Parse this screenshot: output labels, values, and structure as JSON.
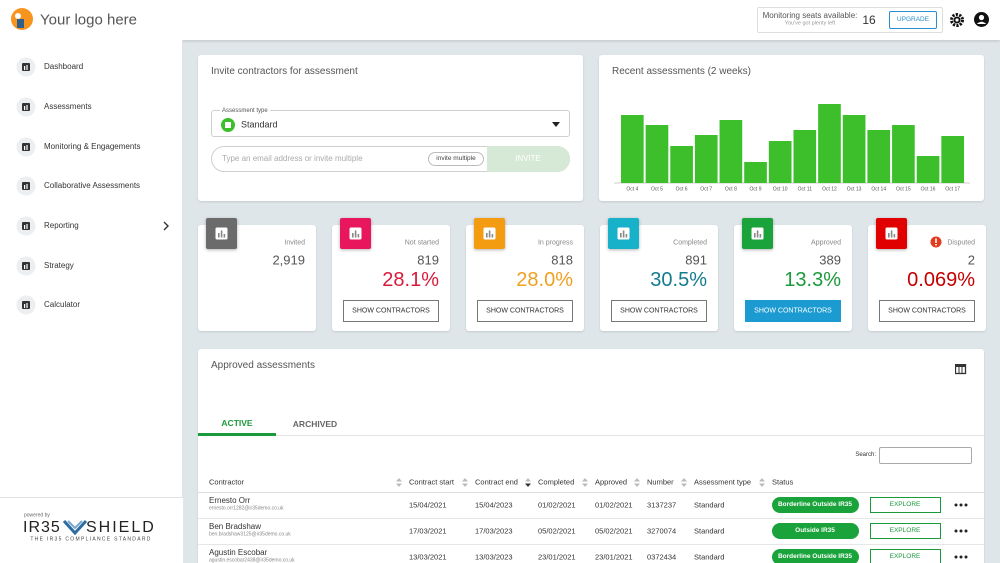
{
  "header": {
    "logo": "Your logo here",
    "seats_label": "Monitoring seats available:",
    "seats_note": "You've got plenty left",
    "seats_count": "16",
    "upgrade": "UPGRADE"
  },
  "sidebar": {
    "items": [
      "Dashboard",
      "Assessments",
      "Monitoring & Engagements",
      "Collaborative Assessments",
      "Reporting",
      "Strategy",
      "Calculator"
    ],
    "powered_by": "powered by",
    "brand": "IR35",
    "brand2": "SHIELD",
    "tagline": "THE IR35 COMPLIANCE STANDARD"
  },
  "invite": {
    "title": "Invite contractors for assessment",
    "type_label": "Assessment type",
    "type_value": "Standard",
    "email_placeholder": "Type an email address or invite multiple",
    "invite_multiple": "invite multiple",
    "invite_button": "INVITE"
  },
  "chart_data": {
    "type": "bar",
    "title": "Recent assessments (2 weeks)",
    "categories": [
      "Oct 4",
      "Oct 5",
      "Oct 6",
      "Oct 7",
      "Oct 8",
      "Oct 9",
      "Oct 10",
      "Oct 11",
      "Oct 12",
      "Oct 13",
      "Oct 14",
      "Oct 15",
      "Oct 16",
      "Oct 17"
    ],
    "values": [
      68,
      58,
      37,
      48,
      63,
      21,
      42,
      53,
      79,
      68,
      53,
      58,
      27,
      47
    ],
    "color": "#3dbf2b",
    "ylim": [
      0,
      80
    ]
  },
  "stats": [
    {
      "label": "Invited",
      "count": "2,919",
      "color": "#6b6b6b"
    },
    {
      "label": "Not started",
      "count": "819",
      "percent": "28.1%",
      "button": "SHOW CONTRACTORS",
      "color": "#e8175d",
      "percent_color": "#d81b3c"
    },
    {
      "label": "In progress",
      "count": "818",
      "percent": "28.0%",
      "button": "SHOW CONTRACTORS",
      "color": "#f39c12",
      "percent_color": "#f0a020"
    },
    {
      "label": "Completed",
      "count": "891",
      "percent": "30.5%",
      "button": "SHOW CONTRACTORS",
      "color": "#17b2c9",
      "percent_color": "#137c8c"
    },
    {
      "label": "Approved",
      "count": "389",
      "percent": "13.3%",
      "button": "SHOW CONTRACTORS",
      "color": "#1aa33a",
      "percent_color": "#1a9a3a"
    },
    {
      "label": "Disputed",
      "count": "2",
      "percent": "0.069%",
      "button": "SHOW CONTRACTORS",
      "color": "#e00000",
      "percent_color": "#c40000"
    }
  ],
  "table": {
    "title": "Approved assessments",
    "tabs": [
      "ACTIVE",
      "ARCHIVED"
    ],
    "search_label": "Search:",
    "columns": [
      "Contractor",
      "Contract start",
      "Contract end",
      "Completed",
      "Approved",
      "Number",
      "Assessment type",
      "Status"
    ],
    "explore": "EXPLORE",
    "rows": [
      {
        "name": "Ernesto Orr",
        "email": "ernesto.orr1282@ir35demo.co.uk",
        "cells": [
          "15/04/2021",
          "15/04/2023",
          "01/02/2021",
          "01/02/2021",
          "3137237",
          "Standard"
        ],
        "status": "Borderline Outside IR35"
      },
      {
        "name": "Ben Bradshaw",
        "email": "ben.bradshaw3125@ir35demo.co.uk",
        "cells": [
          "17/03/2021",
          "17/03/2023",
          "05/02/2021",
          "05/02/2021",
          "3270074",
          "Standard"
        ],
        "status": "Outside IR35"
      },
      {
        "name": "Agustin Escobar",
        "email": "agustin.escobar2438@ir35demo.co.uk",
        "cells": [
          "13/03/2021",
          "13/03/2023",
          "23/01/2021",
          "23/01/2021",
          "0372434",
          "Standard"
        ],
        "status": "Borderline Outside IR35"
      }
    ]
  }
}
